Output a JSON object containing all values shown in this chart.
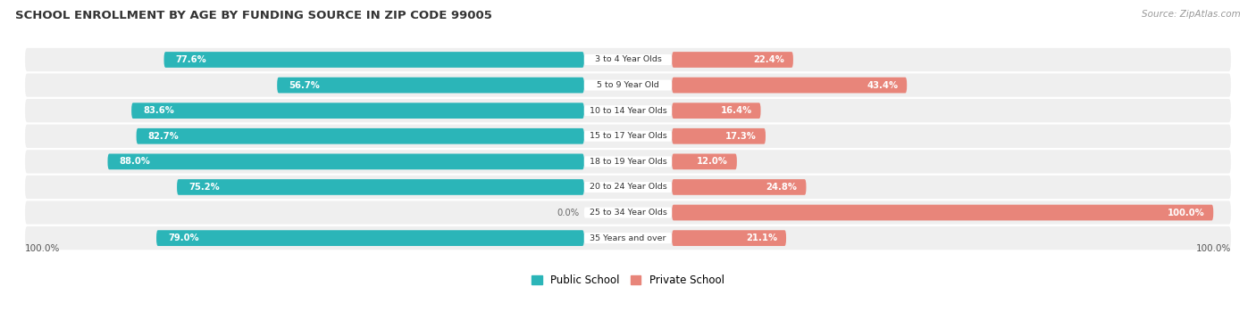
{
  "title": "SCHOOL ENROLLMENT BY AGE BY FUNDING SOURCE IN ZIP CODE 99005",
  "source": "Source: ZipAtlas.com",
  "categories": [
    "3 to 4 Year Olds",
    "5 to 9 Year Old",
    "10 to 14 Year Olds",
    "15 to 17 Year Olds",
    "18 to 19 Year Olds",
    "20 to 24 Year Olds",
    "25 to 34 Year Olds",
    "35 Years and over"
  ],
  "public_values": [
    77.6,
    56.7,
    83.6,
    82.7,
    88.0,
    75.2,
    0.0,
    79.0
  ],
  "private_values": [
    22.4,
    43.4,
    16.4,
    17.3,
    12.0,
    24.8,
    100.0,
    21.1
  ],
  "public_color": "#2BB5B8",
  "private_color": "#E8857A",
  "public_color_light": "#A8D8DA",
  "row_bg_color": "#EFEFEF",
  "legend_public": "Public School",
  "legend_private": "Private School",
  "figsize": [
    14.06,
    3.77
  ],
  "dpi": 100
}
